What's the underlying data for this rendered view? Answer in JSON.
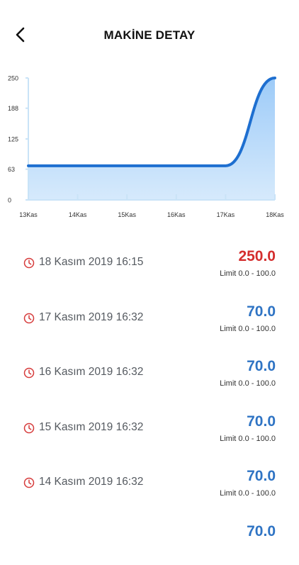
{
  "header": {
    "title": "MAKİNE DETAY",
    "back_icon": "chevron-left-icon"
  },
  "chart_data": {
    "type": "area",
    "x": [
      "13Kas",
      "14Kas",
      "15Kas",
      "16Kas",
      "17Kas",
      "18Kas"
    ],
    "y_ticks": [
      0,
      63,
      125,
      188,
      250
    ],
    "values": [
      70,
      70,
      70,
      70,
      70,
      250
    ],
    "ylim": [
      0,
      250
    ],
    "title": "",
    "xlabel": "",
    "ylabel": "",
    "line_color": "#1e6fd0",
    "fill_color": "#cfe6fb"
  },
  "readings": [
    {
      "date": "18 Kasım 2019 16:15",
      "value": "250.0",
      "limit": "Limit 0.0 - 100.0",
      "status": "alert",
      "color": "#d42e2e"
    },
    {
      "date": "17 Kasım 2019 16:32",
      "value": "70.0",
      "limit": "Limit 0.0 - 100.0",
      "status": "ok",
      "color": "#2f74c4"
    },
    {
      "date": "16 Kasım 2019 16:32",
      "value": "70.0",
      "limit": "Limit 0.0 - 100.0",
      "status": "ok",
      "color": "#2f74c4"
    },
    {
      "date": "15 Kasım 2019 16:32",
      "value": "70.0",
      "limit": "Limit 0.0 - 100.0",
      "status": "ok",
      "color": "#2f74c4"
    },
    {
      "date": "14 Kasım 2019 16:32",
      "value": "70.0",
      "limit": "Limit 0.0 - 100.0",
      "status": "ok",
      "color": "#2f74c4"
    },
    {
      "date": "",
      "value": "70.0",
      "limit": "",
      "status": "ok",
      "color": "#2f74c4"
    }
  ],
  "colors": {
    "clock_icon": "#d63a3a",
    "axis": "#c9e3f7"
  }
}
